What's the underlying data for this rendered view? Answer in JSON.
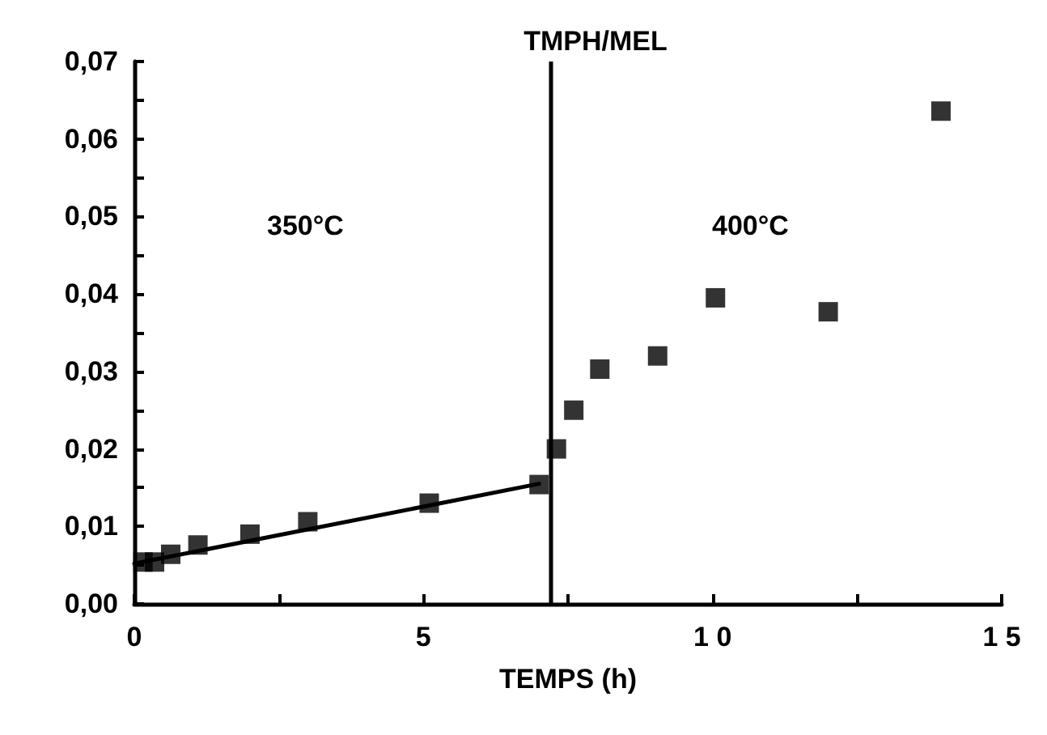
{
  "chart_data": {
    "type": "scatter",
    "title": "TMPH/MEL",
    "xlabel": "TEMPS (h)",
    "xlim": [
      0,
      15
    ],
    "xticks": [
      0,
      {
        "value": 2.5,
        "label": null
      },
      5,
      {
        "value": 7.5,
        "label": null
      },
      {
        "value": 10,
        "label": "1 0"
      },
      {
        "value": 12.5,
        "label": null
      },
      {
        "value": 15,
        "label": "1 5"
      }
    ],
    "ylim": [
      0,
      0.07
    ],
    "yticks": [
      {
        "value": 0,
        "label": "0,00"
      },
      {
        "value": 0.005,
        "label": null
      },
      {
        "value": 0.01,
        "label": "0,01"
      },
      {
        "value": 0.015,
        "label": null
      },
      {
        "value": 0.02,
        "label": "0,02"
      },
      {
        "value": 0.025,
        "label": null
      },
      {
        "value": 0.03,
        "label": "0,03"
      },
      {
        "value": 0.035,
        "label": null
      },
      {
        "value": 0.04,
        "label": "0,04"
      },
      {
        "value": 0.045,
        "label": null
      },
      {
        "value": 0.05,
        "label": "0,05"
      },
      {
        "value": 0.055,
        "label": null
      },
      {
        "value": 0.06,
        "label": "0,06"
      },
      {
        "value": 0.065,
        "label": null
      },
      {
        "value": 0.07,
        "label": "0,07"
      }
    ],
    "grid": false,
    "marker": "square",
    "series": [
      {
        "color": "#000000",
        "x": [
          0.15,
          0.35,
          0.63,
          1.1,
          2.0,
          3.0,
          5.1,
          7.0,
          7.3,
          7.6,
          8.05,
          9.05,
          10.05,
          12.0,
          13.95
        ],
        "values": [
          0.0054,
          0.0054,
          0.0064,
          0.0076,
          0.009,
          0.0106,
          0.013,
          0.0154,
          0.02,
          0.025,
          0.0303,
          0.032,
          0.0395,
          0.0377,
          0.0636
        ]
      },
      {
        "type": "line",
        "color": "#000000",
        "x": [
          0,
          7
        ],
        "values": [
          0.0052,
          0.0155
        ],
        "marker": "none",
        "line_style": "solid"
      }
    ],
    "ref_lines": [
      {
        "axis": "x",
        "value": 7.2,
        "color": "#000000",
        "line_style": "solid"
      }
    ],
    "annotations": [
      "350°C",
      "400°C"
    ]
  }
}
